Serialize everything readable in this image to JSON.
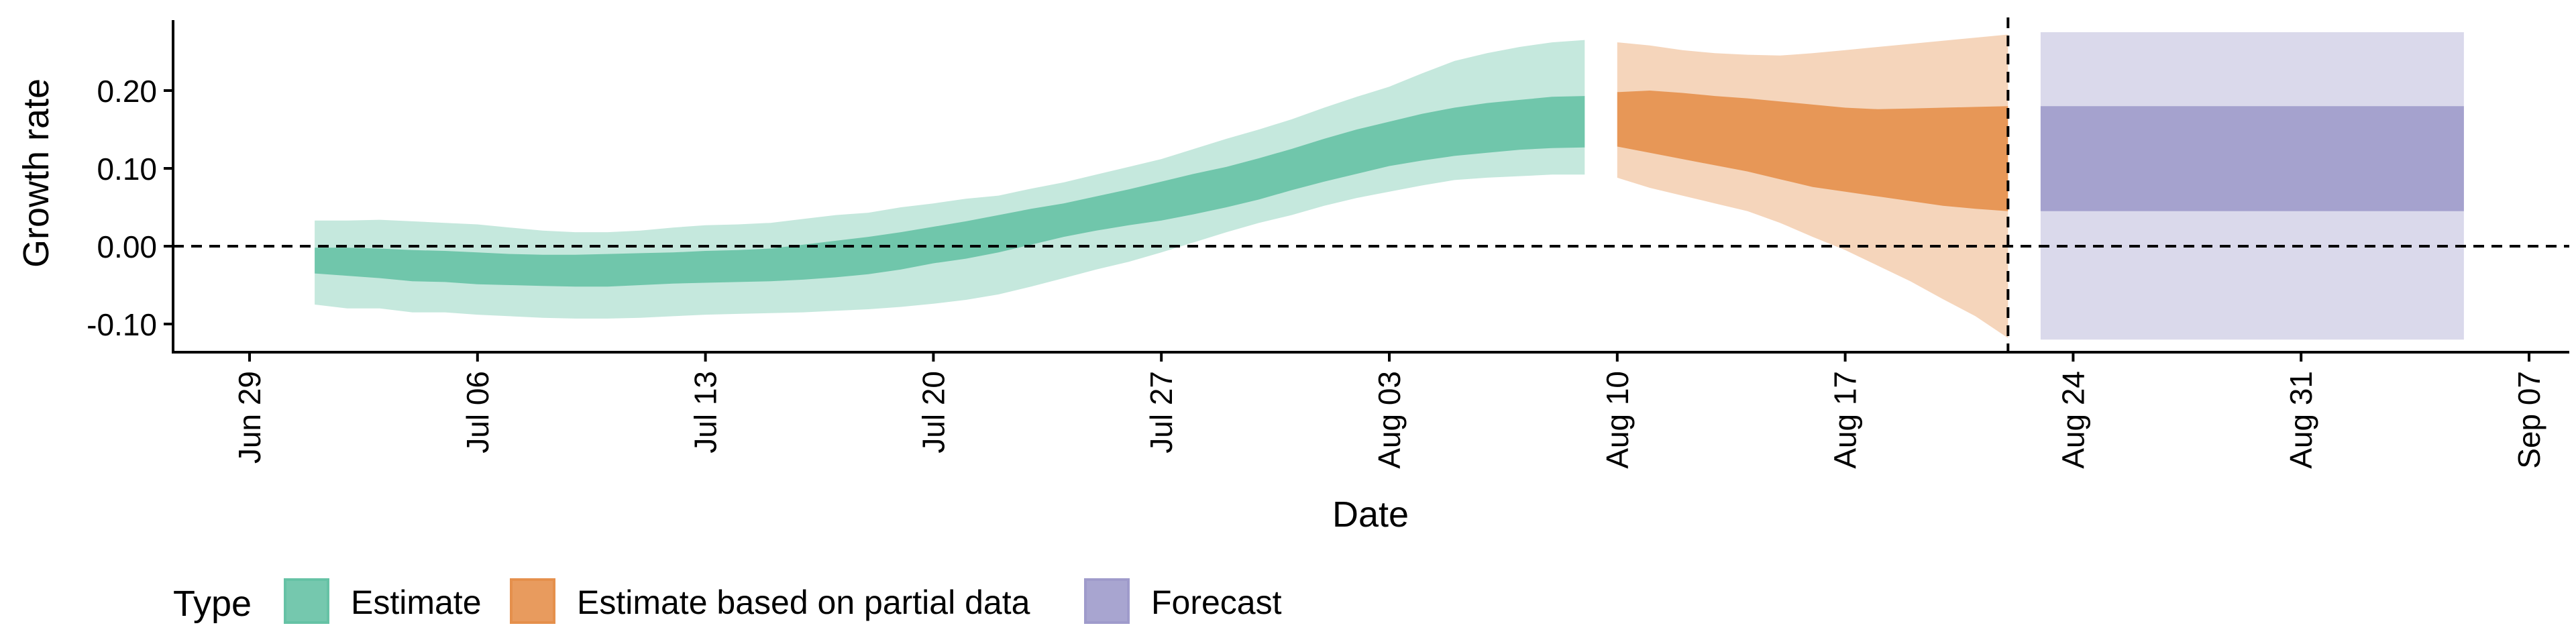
{
  "chart_data": {
    "type": "area",
    "title": "",
    "xlabel": "Date",
    "ylabel": "Growth rate",
    "x_ticks": [
      "Jun 29",
      "Jul 06",
      "Jul 13",
      "Jul 20",
      "Jul 27",
      "Aug 03",
      "Aug 10",
      "Aug 17",
      "Aug 24",
      "Aug 31",
      "Sep 07"
    ],
    "y_ticks": [
      "-0.10",
      "0.00",
      "0.10",
      "0.20"
    ],
    "x_range": [
      "2020-06-26",
      "2020-09-08"
    ],
    "ylim": [
      -0.14,
      0.29
    ],
    "grid": false,
    "reference_lines": {
      "horizontal_y": 0.0,
      "vertical_date": "2020-08-22"
    },
    "legend": {
      "title": "Type",
      "position": "bottom-left",
      "entries": [
        {
          "label": "Estimate",
          "color": "#66c2a5"
        },
        {
          "label": "Estimate based on partial data",
          "color": "#e5904c"
        },
        {
          "label": "Forecast",
          "color": "#9f9bcb"
        }
      ]
    },
    "colors": {
      "Estimate": "#66c2a5",
      "Estimate based on partial data": "#e5904c",
      "Forecast": "#9f9bcb"
    },
    "series": [
      {
        "name": "Estimate",
        "dates": [
          "2020-07-01",
          "2020-07-02",
          "2020-07-03",
          "2020-07-04",
          "2020-07-05",
          "2020-07-06",
          "2020-07-07",
          "2020-07-08",
          "2020-07-09",
          "2020-07-10",
          "2020-07-11",
          "2020-07-12",
          "2020-07-13",
          "2020-07-14",
          "2020-07-15",
          "2020-07-16",
          "2020-07-17",
          "2020-07-18",
          "2020-07-19",
          "2020-07-20",
          "2020-07-21",
          "2020-07-22",
          "2020-07-23",
          "2020-07-24",
          "2020-07-25",
          "2020-07-26",
          "2020-07-27",
          "2020-07-28",
          "2020-07-29",
          "2020-07-30",
          "2020-07-31",
          "2020-08-01",
          "2020-08-02",
          "2020-08-03",
          "2020-08-04",
          "2020-08-05",
          "2020-08-06",
          "2020-08-07",
          "2020-08-08",
          "2020-08-09"
        ],
        "lower_90": [
          -0.075,
          -0.08,
          -0.08,
          -0.085,
          -0.085,
          -0.088,
          -0.09,
          -0.092,
          -0.093,
          -0.093,
          -0.092,
          -0.09,
          -0.088,
          -0.087,
          -0.086,
          -0.085,
          -0.083,
          -0.081,
          -0.078,
          -0.074,
          -0.069,
          -0.062,
          -0.052,
          -0.041,
          -0.03,
          -0.02,
          -0.008,
          0.005,
          0.018,
          0.03,
          0.04,
          0.052,
          0.062,
          0.07,
          0.078,
          0.085,
          0.088,
          0.09,
          0.092,
          0.092
        ],
        "upper_90": [
          0.033,
          0.033,
          0.034,
          0.032,
          0.03,
          0.028,
          0.024,
          0.02,
          0.018,
          0.018,
          0.02,
          0.024,
          0.027,
          0.028,
          0.03,
          0.035,
          0.04,
          0.043,
          0.05,
          0.055,
          0.061,
          0.065,
          0.074,
          0.082,
          0.092,
          0.102,
          0.112,
          0.125,
          0.138,
          0.15,
          0.163,
          0.178,
          0.192,
          0.205,
          0.222,
          0.238,
          0.248,
          0.256,
          0.262,
          0.265
        ],
        "lower_50": [
          -0.035,
          -0.038,
          -0.041,
          -0.045,
          -0.046,
          -0.049,
          -0.05,
          -0.051,
          -0.052,
          -0.052,
          -0.05,
          -0.048,
          -0.047,
          -0.046,
          -0.045,
          -0.043,
          -0.04,
          -0.036,
          -0.03,
          -0.022,
          -0.016,
          -0.008,
          0.002,
          0.012,
          0.02,
          0.027,
          0.033,
          0.041,
          0.05,
          0.06,
          0.072,
          0.083,
          0.093,
          0.103,
          0.11,
          0.116,
          0.12,
          0.124,
          0.126,
          0.127
        ],
        "upper_50": [
          -0.002,
          -0.002,
          -0.003,
          -0.005,
          -0.006,
          -0.008,
          -0.01,
          -0.011,
          -0.011,
          -0.01,
          -0.009,
          -0.008,
          -0.006,
          -0.005,
          -0.003,
          0.002,
          0.007,
          0.012,
          0.018,
          0.025,
          0.032,
          0.04,
          0.048,
          0.055,
          0.064,
          0.073,
          0.083,
          0.093,
          0.102,
          0.113,
          0.125,
          0.138,
          0.15,
          0.16,
          0.17,
          0.178,
          0.184,
          0.188,
          0.192,
          0.193
        ]
      },
      {
        "name": "Estimate based on partial data",
        "dates": [
          "2020-08-10",
          "2020-08-11",
          "2020-08-12",
          "2020-08-13",
          "2020-08-14",
          "2020-08-15",
          "2020-08-16",
          "2020-08-17",
          "2020-08-18",
          "2020-08-19",
          "2020-08-20",
          "2020-08-21",
          "2020-08-22"
        ],
        "lower_90": [
          0.088,
          0.075,
          0.065,
          0.055,
          0.045,
          0.03,
          0.012,
          -0.005,
          -0.025,
          -0.045,
          -0.068,
          -0.09,
          -0.118
        ],
        "upper_90": [
          0.262,
          0.258,
          0.252,
          0.248,
          0.246,
          0.245,
          0.248,
          0.252,
          0.256,
          0.26,
          0.264,
          0.268,
          0.272
        ],
        "lower_50": [
          0.128,
          0.12,
          0.112,
          0.104,
          0.096,
          0.086,
          0.076,
          0.07,
          0.064,
          0.058,
          0.052,
          0.048,
          0.045
        ],
        "upper_50": [
          0.198,
          0.2,
          0.197,
          0.193,
          0.19,
          0.186,
          0.182,
          0.178,
          0.176,
          0.177,
          0.178,
          0.179,
          0.18
        ]
      },
      {
        "name": "Forecast",
        "dates": [
          "2020-08-23",
          "2020-09-05"
        ],
        "lower_90": [
          -0.12,
          -0.12
        ],
        "upper_90": [
          0.275,
          0.275
        ],
        "lower_50": [
          0.045,
          0.045
        ],
        "upper_50": [
          0.18,
          0.18
        ]
      }
    ]
  }
}
